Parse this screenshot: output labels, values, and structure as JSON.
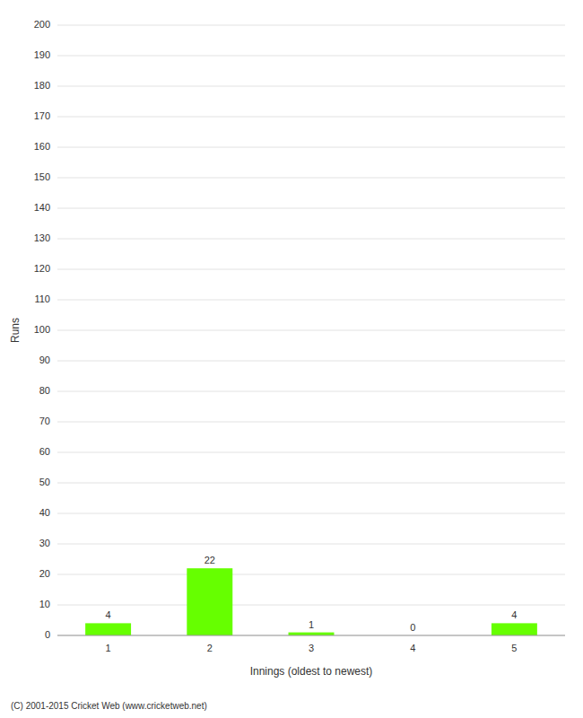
{
  "chart_data": {
    "type": "bar",
    "categories": [
      "1",
      "2",
      "3",
      "4",
      "5"
    ],
    "values": [
      4,
      22,
      1,
      0,
      4
    ],
    "color": "#66ff00",
    "xlabel": "Innings (oldest to newest)",
    "ylabel": "Runs",
    "ylim": [
      0,
      200
    ],
    "yticks": [
      0,
      10,
      20,
      30,
      40,
      50,
      60,
      70,
      80,
      90,
      100,
      110,
      120,
      130,
      140,
      150,
      160,
      170,
      180,
      190,
      200
    ],
    "grid": true,
    "data_labels": true,
    "annotations": [
      "(C) 2001-2015 Cricket Web (www.cricketweb.net)"
    ]
  }
}
